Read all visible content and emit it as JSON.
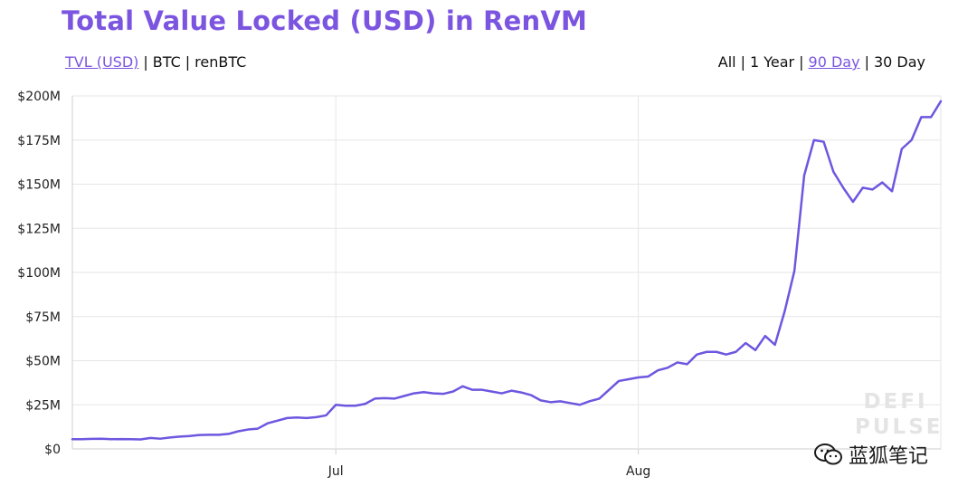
{
  "title": "Total Value Locked (USD) in RenVM",
  "metric_options": [
    {
      "label": "TVL (USD)",
      "active": true
    },
    {
      "label": "BTC",
      "active": false
    },
    {
      "label": "renBTC",
      "active": false
    }
  ],
  "range_options": [
    {
      "label": "All",
      "active": false
    },
    {
      "label": "1 Year",
      "active": false
    },
    {
      "label": "90 Day",
      "active": true
    },
    {
      "label": "30 Day",
      "active": false
    }
  ],
  "watermark": {
    "line1": "DEFI",
    "line2": "PULSE",
    "account": "蓝狐笔记"
  },
  "colors": {
    "accent": "#7b55e0",
    "line": "#6e56e0",
    "grid": "#e6e6e6"
  },
  "chart_data": {
    "type": "line",
    "title": "Total Value Locked (USD) in RenVM",
    "xlabel": "",
    "ylabel": "",
    "ylim": [
      0,
      200
    ],
    "y_unit": "M USD",
    "y_ticks": [
      "$0",
      "$25M",
      "$50M",
      "$75M",
      "$100M",
      "$125M",
      "$150M",
      "$175M",
      "$200M"
    ],
    "x_ticks": [
      {
        "label": "Jul",
        "day": 27
      },
      {
        "label": "Aug",
        "day": 58
      }
    ],
    "x_range": [
      0,
      89
    ],
    "grid": true,
    "legend": "none",
    "series": [
      {
        "values": [
          5.5,
          5.5,
          5.7,
          5.8,
          5.5,
          5.6,
          5.5,
          5.4,
          6.2,
          5.8,
          6.5,
          7,
          7.3,
          7.9,
          8,
          8,
          8.5,
          10,
          11,
          11.5,
          14.5,
          16,
          17.5,
          17.8,
          17.5,
          18,
          19,
          25,
          24.5,
          24.5,
          25.5,
          28.5,
          28.8,
          28.5,
          30,
          31.5,
          32.2,
          31.5,
          31.2,
          32.5,
          35.5,
          33.5,
          33.5,
          32.5,
          31.5,
          33,
          32,
          30.5,
          27.5,
          26.5,
          27,
          26,
          25,
          27,
          28.5,
          33.5,
          38.5,
          39.5,
          40.5,
          41,
          44.5,
          46,
          49,
          48,
          53.5,
          55,
          55,
          53.5,
          55,
          60,
          56,
          64,
          59,
          78,
          101,
          155,
          175,
          174,
          157,
          148,
          140,
          148,
          147,
          151,
          146,
          170,
          175,
          188,
          188,
          197
        ]
      }
    ]
  }
}
